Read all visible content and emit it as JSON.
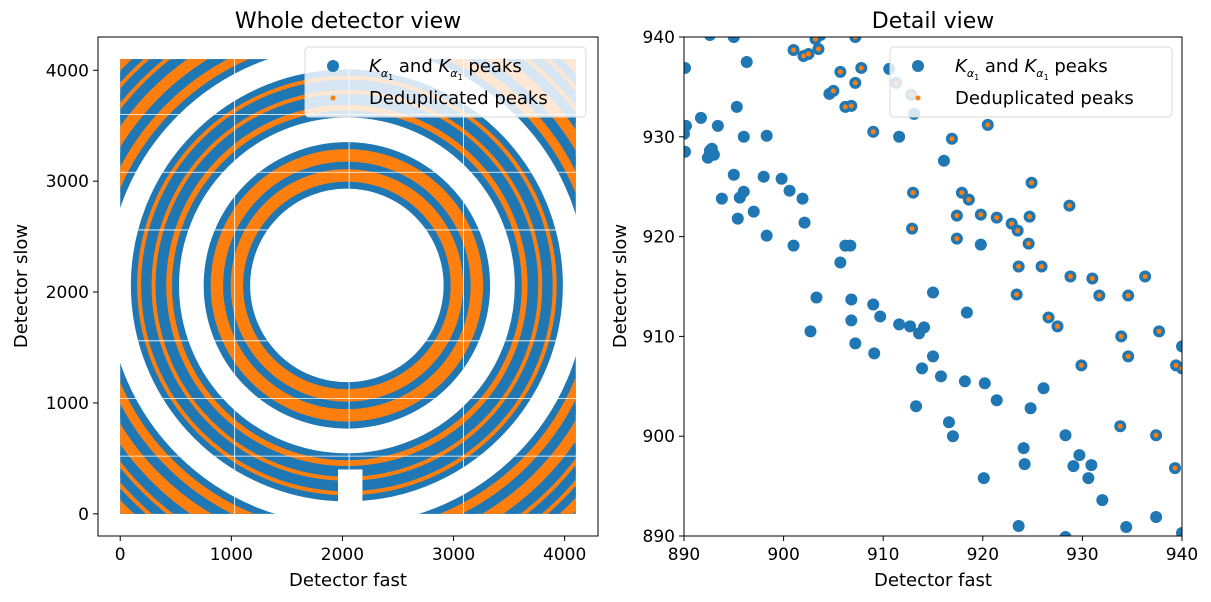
{
  "colors": {
    "blue": "#1f77b4",
    "orange": "#ff7f0e"
  },
  "chart_data": [
    {
      "type": "scatter",
      "title": "Whole detector view",
      "xlabel": "Detector fast",
      "ylabel": "Detector slow",
      "xlim": [
        -200,
        4300
      ],
      "ylim": [
        -200,
        4300
      ],
      "xticks": [
        0,
        1000,
        2000,
        3000,
        4000
      ],
      "yticks": [
        0,
        1000,
        2000,
        3000,
        4000
      ],
      "center": [
        2040,
        2060
      ],
      "rings": [
        {
          "radius": 990,
          "width": 130
        },
        {
          "radius": 1170,
          "width": 130
        },
        {
          "radius": 1600,
          "width": 70
        },
        {
          "radius": 1740,
          "width": 40
        },
        {
          "radius": 1870,
          "width": 40
        },
        {
          "radius": 2260,
          "width": 100
        },
        {
          "radius": 2440,
          "width": 120
        },
        {
          "radius": 2600,
          "width": 40
        },
        {
          "radius": 2720,
          "width": 50
        },
        {
          "radius": 2850,
          "width": 100
        }
      ],
      "detector_extent": [
        0,
        4100
      ],
      "legend": {
        "location": "upper right",
        "entries": [
          "$K_{\\alpha_1}$ and $K_{\\alpha_1}$ peaks",
          "Deduplicated peaks"
        ]
      }
    },
    {
      "type": "scatter",
      "title": "Detail view",
      "xlabel": "Detector fast",
      "ylabel": "Detector slow",
      "xlim": [
        890,
        940
      ],
      "ylim": [
        890,
        940
      ],
      "xticks": [
        890,
        900,
        910,
        920,
        930,
        940
      ],
      "yticks": [
        890,
        900,
        910,
        920,
        930,
        940
      ],
      "legend": {
        "location": "upper right",
        "entries": [
          "$K_{\\alpha_1}$ and $K_{\\alpha_1}$ peaks",
          "Deduplicated peaks"
        ]
      },
      "series": [
        {
          "name": "$K_{\\alpha_1}$ and $K_{\\alpha_1}$ peaks",
          "points": [
            [
              890.1,
              936.9
            ],
            [
              890.2,
              931.1
            ],
            [
              890.0,
              930.3
            ],
            [
              890.1,
              928.5
            ],
            [
              891.7,
              931.9
            ],
            [
              893.4,
              931.1
            ],
            [
              892.4,
              927.9
            ],
            [
              892.6,
              928.6
            ],
            [
              892.8,
              928.8
            ],
            [
              893.0,
              928.2
            ],
            [
              892.6,
              940.2
            ],
            [
              895.0,
              940.0
            ],
            [
              895.3,
              933.0
            ],
            [
              896.0,
              930.0
            ],
            [
              896.3,
              937.5
            ],
            [
              898.3,
              930.1
            ],
            [
              895.0,
              926.2
            ],
            [
              896.0,
              924.5
            ],
            [
              895.6,
              923.9
            ],
            [
              893.8,
              923.8
            ],
            [
              895.4,
              921.8
            ],
            [
              897.0,
              922.5
            ],
            [
              898.0,
              926.0
            ],
            [
              899.8,
              925.8
            ],
            [
              900.6,
              924.6
            ],
            [
              901.9,
              923.8
            ],
            [
              902.1,
              921.4
            ],
            [
              898.3,
              920.1
            ],
            [
              901.0,
              919.1
            ],
            [
              906.2,
              919.1
            ],
            [
              906.7,
              919.1
            ],
            [
              905.7,
              917.4
            ],
            [
              901.0,
              938.7
            ],
            [
              902.0,
              938.1
            ],
            [
              902.5,
              938.3
            ],
            [
              903.2,
              939.8
            ],
            [
              903.5,
              938.8
            ],
            [
              903.7,
              940.2
            ],
            [
              904.6,
              934.3
            ],
            [
              905.0,
              934.6
            ],
            [
              905.7,
              936.5
            ],
            [
              906.2,
              933.0
            ],
            [
              906.8,
              933.1
            ],
            [
              907.2,
              935.4
            ],
            [
              907.2,
              940.0
            ],
            [
              907.8,
              936.9
            ],
            [
              909.0,
              930.5
            ],
            [
              911.3,
              935.4
            ],
            [
              910.6,
              936.8
            ],
            [
              911.6,
              930.0
            ],
            [
              912.8,
              934.2
            ],
            [
              913.1,
              932.3
            ],
            [
              916.1,
              927.6
            ],
            [
              916.9,
              929.8
            ],
            [
              920.5,
              931.2
            ],
            [
              913.0,
              924.4
            ],
            [
              912.9,
              920.8
            ],
            [
              917.4,
              922.1
            ],
            [
              917.9,
              924.4
            ],
            [
              918.6,
              923.7
            ],
            [
              917.4,
              919.8
            ],
            [
              919.8,
              922.2
            ],
            [
              919.8,
              919.2
            ],
            [
              921.4,
              921.9
            ],
            [
              922.9,
              921.3
            ],
            [
              923.5,
              920.6
            ],
            [
              924.7,
              922.0
            ],
            [
              924.6,
              919.3
            ],
            [
              924.9,
              925.4
            ],
            [
              928.7,
              923.1
            ],
            [
              923.6,
              917.0
            ],
            [
              925.9,
              917.0
            ],
            [
              928.8,
              916.0
            ],
            [
              931.0,
              915.8
            ],
            [
              931.7,
              914.1
            ],
            [
              934.6,
              914.1
            ],
            [
              936.3,
              916.0
            ],
            [
              923.4,
              914.2
            ],
            [
              926.6,
              911.9
            ],
            [
              927.5,
              911.0
            ],
            [
              903.3,
              913.9
            ],
            [
              902.7,
              910.5
            ],
            [
              906.8,
              913.7
            ],
            [
              906.8,
              911.6
            ],
            [
              907.2,
              909.3
            ],
            [
              909.0,
              913.2
            ],
            [
              909.7,
              912.0
            ],
            [
              909.1,
              908.3
            ],
            [
              911.6,
              911.2
            ],
            [
              912.7,
              911.0
            ],
            [
              913.6,
              910.3
            ],
            [
              914.1,
              910.9
            ],
            [
              915.0,
              914.4
            ],
            [
              915.0,
              908.0
            ],
            [
              913.9,
              906.8
            ],
            [
              915.8,
              906.0
            ],
            [
              918.2,
              905.5
            ],
            [
              920.2,
              905.3
            ],
            [
              918.4,
              912.4
            ],
            [
              921.4,
              903.6
            ],
            [
              924.8,
              902.8
            ],
            [
              926.1,
              904.8
            ],
            [
              913.3,
              903.0
            ],
            [
              916.6,
              901.4
            ],
            [
              917.0,
              900.0
            ],
            [
              920.1,
              895.8
            ],
            [
              924.1,
              898.8
            ],
            [
              924.2,
              897.2
            ],
            [
              928.3,
              900.1
            ],
            [
              929.1,
              897.0
            ],
            [
              929.7,
              898.1
            ],
            [
              930.9,
              897.1
            ],
            [
              930.6,
              895.8
            ],
            [
              932.0,
              893.6
            ],
            [
              929.9,
              907.1
            ],
            [
              933.9,
              910.0
            ],
            [
              934.6,
              908.0
            ],
            [
              937.7,
              910.5
            ],
            [
              939.4,
              907.1
            ],
            [
              940.0,
              906.8
            ],
            [
              940.0,
              909.0
            ],
            [
              933.8,
              901.0
            ],
            [
              937.4,
              900.1
            ],
            [
              939.3,
              896.8
            ],
            [
              934.4,
              890.9
            ],
            [
              937.4,
              891.9
            ],
            [
              923.6,
              891.0
            ],
            [
              928.3,
              889.9
            ],
            [
              940.0,
              890.3
            ]
          ]
        },
        {
          "name": "Deduplicated peaks",
          "points": [
            [
              901.0,
              938.7
            ],
            [
              902.0,
              938.1
            ],
            [
              902.5,
              938.3
            ],
            [
              903.2,
              939.8
            ],
            [
              903.5,
              938.8
            ],
            [
              905.0,
              934.6
            ],
            [
              905.7,
              936.5
            ],
            [
              906.2,
              933.0
            ],
            [
              906.8,
              933.1
            ],
            [
              907.2,
              935.4
            ],
            [
              907.2,
              940.0
            ],
            [
              907.8,
              936.9
            ],
            [
              909.0,
              930.5
            ],
            [
              911.3,
              935.4
            ],
            [
              912.8,
              934.2
            ],
            [
              916.9,
              929.8
            ],
            [
              920.5,
              931.2
            ],
            [
              913.0,
              924.4
            ],
            [
              912.9,
              920.8
            ],
            [
              917.4,
              922.1
            ],
            [
              917.9,
              924.4
            ],
            [
              918.6,
              923.7
            ],
            [
              917.4,
              919.8
            ],
            [
              919.8,
              922.2
            ],
            [
              921.4,
              921.9
            ],
            [
              922.9,
              921.3
            ],
            [
              923.5,
              920.6
            ],
            [
              924.7,
              922.0
            ],
            [
              924.6,
              919.3
            ],
            [
              924.9,
              925.4
            ],
            [
              928.7,
              923.1
            ],
            [
              923.6,
              917.0
            ],
            [
              925.9,
              917.0
            ],
            [
              928.8,
              916.0
            ],
            [
              931.0,
              915.8
            ],
            [
              931.7,
              914.1
            ],
            [
              934.6,
              914.1
            ],
            [
              936.3,
              916.0
            ],
            [
              923.4,
              914.2
            ],
            [
              926.6,
              911.9
            ],
            [
              927.5,
              911.0
            ],
            [
              929.9,
              907.1
            ],
            [
              933.9,
              910.0
            ],
            [
              934.6,
              908.0
            ],
            [
              937.7,
              910.5
            ],
            [
              939.4,
              907.1
            ],
            [
              940.0,
              906.8
            ],
            [
              933.8,
              901.0
            ],
            [
              937.4,
              900.1
            ],
            [
              939.3,
              896.8
            ]
          ]
        }
      ]
    }
  ]
}
